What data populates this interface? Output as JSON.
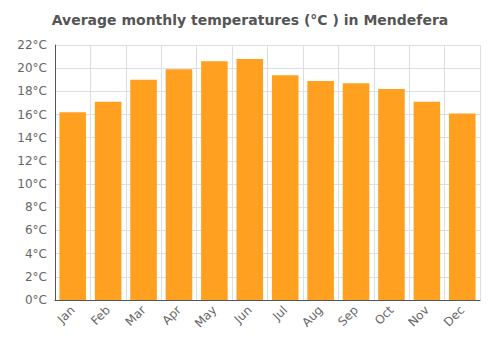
{
  "chart_data": {
    "type": "bar",
    "title": "Average monthly temperatures (°C ) in Mendefera",
    "categories": [
      "Jan",
      "Feb",
      "Mar",
      "Apr",
      "May",
      "Jun",
      "Jul",
      "Aug",
      "Sep",
      "Oct",
      "Nov",
      "Dec"
    ],
    "values": [
      16.2,
      17.1,
      19.0,
      19.9,
      20.6,
      20.8,
      19.4,
      18.9,
      18.7,
      18.2,
      17.1,
      16.1
    ],
    "color": "#FFA020",
    "ylim": [
      0,
      22
    ],
    "yticks": [
      {
        "value": 0,
        "label": "0°C"
      },
      {
        "value": 2,
        "label": "2°C"
      },
      {
        "value": 4,
        "label": "4°C"
      },
      {
        "value": 6,
        "label": "6°C"
      },
      {
        "value": 8,
        "label": "8°C"
      },
      {
        "value": 10,
        "label": "10°C"
      },
      {
        "value": 12,
        "label": "12°C"
      },
      {
        "value": 14,
        "label": "14°C"
      },
      {
        "value": 16,
        "label": "16°C"
      },
      {
        "value": 18,
        "label": "18°C"
      },
      {
        "value": 20,
        "label": "20°C"
      },
      {
        "value": 22,
        "label": "22°C"
      }
    ],
    "grid": true
  }
}
